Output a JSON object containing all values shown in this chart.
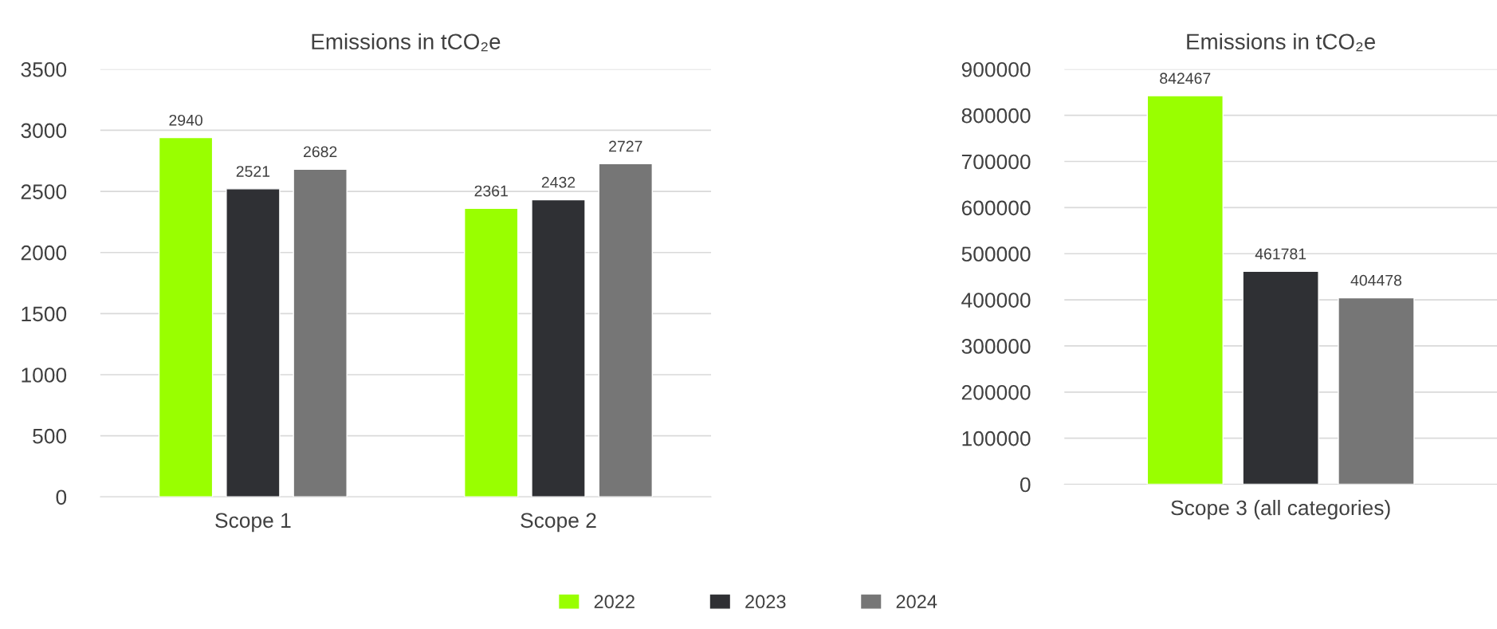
{
  "chart_data": [
    {
      "type": "bar",
      "title": "Emissions in tCO₂e",
      "categories": [
        "Scope 1",
        "Scope 2"
      ],
      "series": [
        {
          "name": "2022",
          "color": "#99ff00",
          "values": [
            2940,
            2361
          ]
        },
        {
          "name": "2023",
          "color": "#2f3034",
          "values": [
            2521,
            2432
          ]
        },
        {
          "name": "2024",
          "color": "#767676",
          "values": [
            2682,
            2727
          ]
        }
      ],
      "ylim": [
        0,
        3500
      ],
      "yticks": [
        0,
        500,
        1000,
        1500,
        2000,
        2500,
        3000,
        3500
      ],
      "grid": "y",
      "data_labels": true,
      "legend": "bottom"
    },
    {
      "type": "bar",
      "title": "Emissions in tCO₂e",
      "categories": [
        "Scope 3 (all categories)"
      ],
      "series": [
        {
          "name": "2022",
          "color": "#99ff00",
          "values": [
            842467
          ]
        },
        {
          "name": "2023",
          "color": "#2f3034",
          "values": [
            461781
          ]
        },
        {
          "name": "2024",
          "color": "#767676",
          "values": [
            404478
          ]
        }
      ],
      "ylim": [
        0,
        900000
      ],
      "yticks": [
        0,
        100000,
        200000,
        300000,
        400000,
        500000,
        600000,
        700000,
        800000,
        900000
      ],
      "grid": "y",
      "data_labels": true
    }
  ]
}
